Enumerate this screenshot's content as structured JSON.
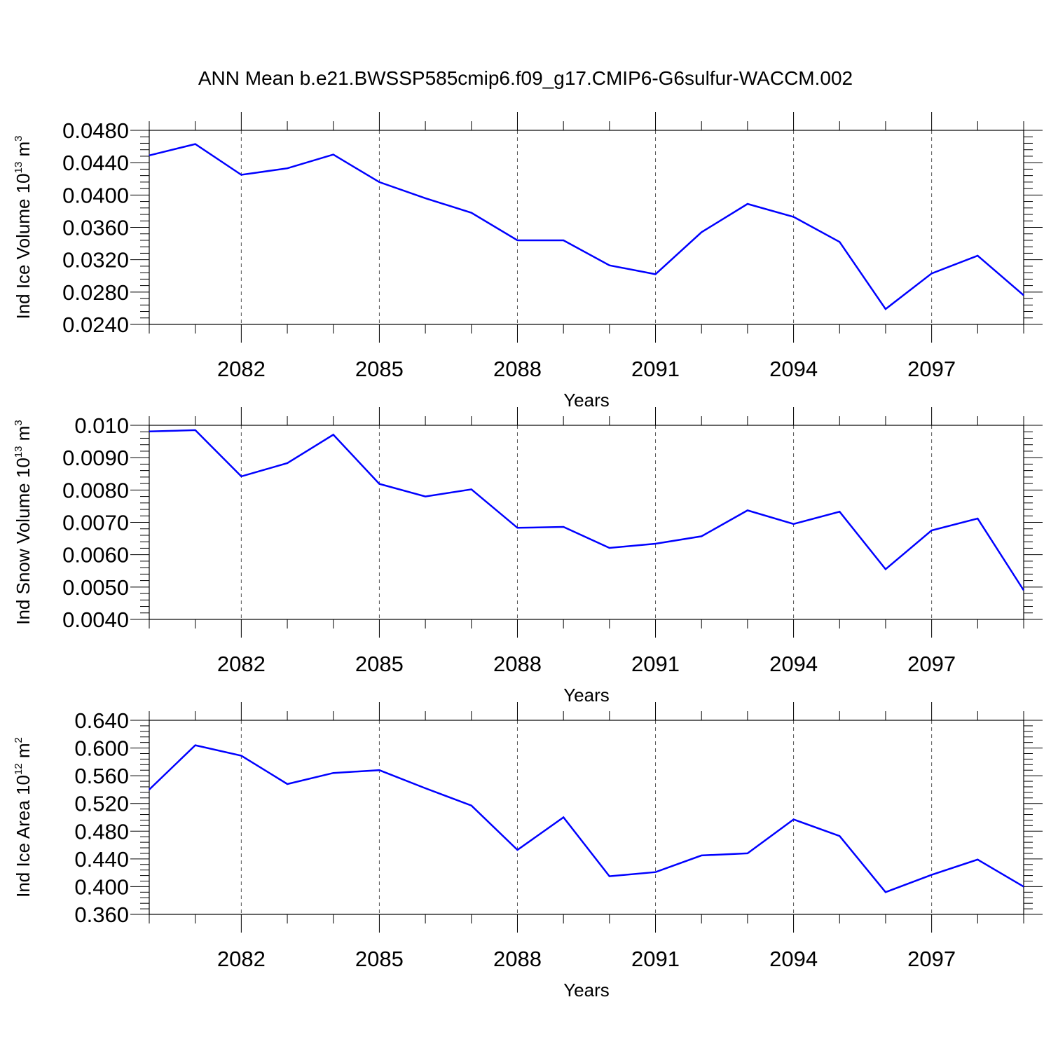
{
  "title": "ANN Mean b.e21.BWSSP585cmip6.f09_g17.CMIP6-G6sulfur-WACCM.002",
  "line_color": "#0000ff",
  "chart_data": [
    {
      "type": "line",
      "xlabel": "Years",
      "ylabel": {
        "prefix": "Ind Ice Volume 10",
        "exp": "13",
        "unit": " m",
        "unit_exp": "3"
      },
      "ylim": [
        0.024,
        0.048
      ],
      "yticks": [
        "0.0240",
        "0.0280",
        "0.0320",
        "0.0360",
        "0.0400",
        "0.0440",
        "0.0480"
      ],
      "xlim": [
        2080,
        2099
      ],
      "xticks": [
        "2082",
        "2085",
        "2088",
        "2091",
        "2094",
        "2097"
      ],
      "grid": "vertical dashed at labeled years",
      "x": [
        2080,
        2081,
        2082,
        2083,
        2084,
        2085,
        2086,
        2087,
        2088,
        2089,
        2090,
        2091,
        2092,
        2093,
        2094,
        2095,
        2096,
        2097,
        2098,
        2099
      ],
      "values": [
        0.0449,
        0.0463,
        0.0425,
        0.0433,
        0.045,
        0.0416,
        0.0396,
        0.0378,
        0.0344,
        0.0344,
        0.0313,
        0.0302,
        0.0354,
        0.0389,
        0.0373,
        0.0342,
        0.0259,
        0.0303,
        0.0325,
        0.0276
      ]
    },
    {
      "type": "line",
      "xlabel": "Years",
      "ylabel": {
        "prefix": "Ind Snow Volume 10",
        "exp": "13",
        "unit": " m",
        "unit_exp": "3"
      },
      "ylim": [
        0.004,
        0.01
      ],
      "yticks": [
        "0.0040",
        "0.0050",
        "0.0060",
        "0.0070",
        "0.0080",
        "0.0090",
        "0.010"
      ],
      "xlim": [
        2080,
        2099
      ],
      "xticks": [
        "2082",
        "2085",
        "2088",
        "2091",
        "2094",
        "2097"
      ],
      "grid": "vertical dashed at labeled years",
      "x": [
        2080,
        2081,
        2082,
        2083,
        2084,
        2085,
        2086,
        2087,
        2088,
        2089,
        2090,
        2091,
        2092,
        2093,
        2094,
        2095,
        2096,
        2097,
        2098,
        2099
      ],
      "values": [
        0.00981,
        0.00985,
        0.00842,
        0.00883,
        0.00971,
        0.00819,
        0.0078,
        0.00802,
        0.00683,
        0.00686,
        0.00621,
        0.00634,
        0.00657,
        0.00737,
        0.00695,
        0.00733,
        0.00555,
        0.00675,
        0.00712,
        0.0049
      ]
    },
    {
      "type": "line",
      "xlabel": "Years",
      "ylabel": {
        "prefix": "Ind Ice Area 10",
        "exp": "12",
        "unit": " m",
        "unit_exp": "2"
      },
      "ylim": [
        0.36,
        0.64
      ],
      "yticks": [
        "0.360",
        "0.400",
        "0.440",
        "0.480",
        "0.520",
        "0.560",
        "0.600",
        "0.640"
      ],
      "xlim": [
        2080,
        2099
      ],
      "xticks": [
        "2082",
        "2085",
        "2088",
        "2091",
        "2094",
        "2097"
      ],
      "grid": "vertical dashed at labeled years",
      "x": [
        2080,
        2081,
        2082,
        2083,
        2084,
        2085,
        2086,
        2087,
        2088,
        2089,
        2090,
        2091,
        2092,
        2093,
        2094,
        2095,
        2096,
        2097,
        2098,
        2099
      ],
      "values": [
        0.54,
        0.604,
        0.589,
        0.548,
        0.564,
        0.568,
        0.542,
        0.517,
        0.453,
        0.5,
        0.415,
        0.421,
        0.445,
        0.448,
        0.497,
        0.473,
        0.392,
        0.417,
        0.439,
        0.4
      ]
    }
  ]
}
